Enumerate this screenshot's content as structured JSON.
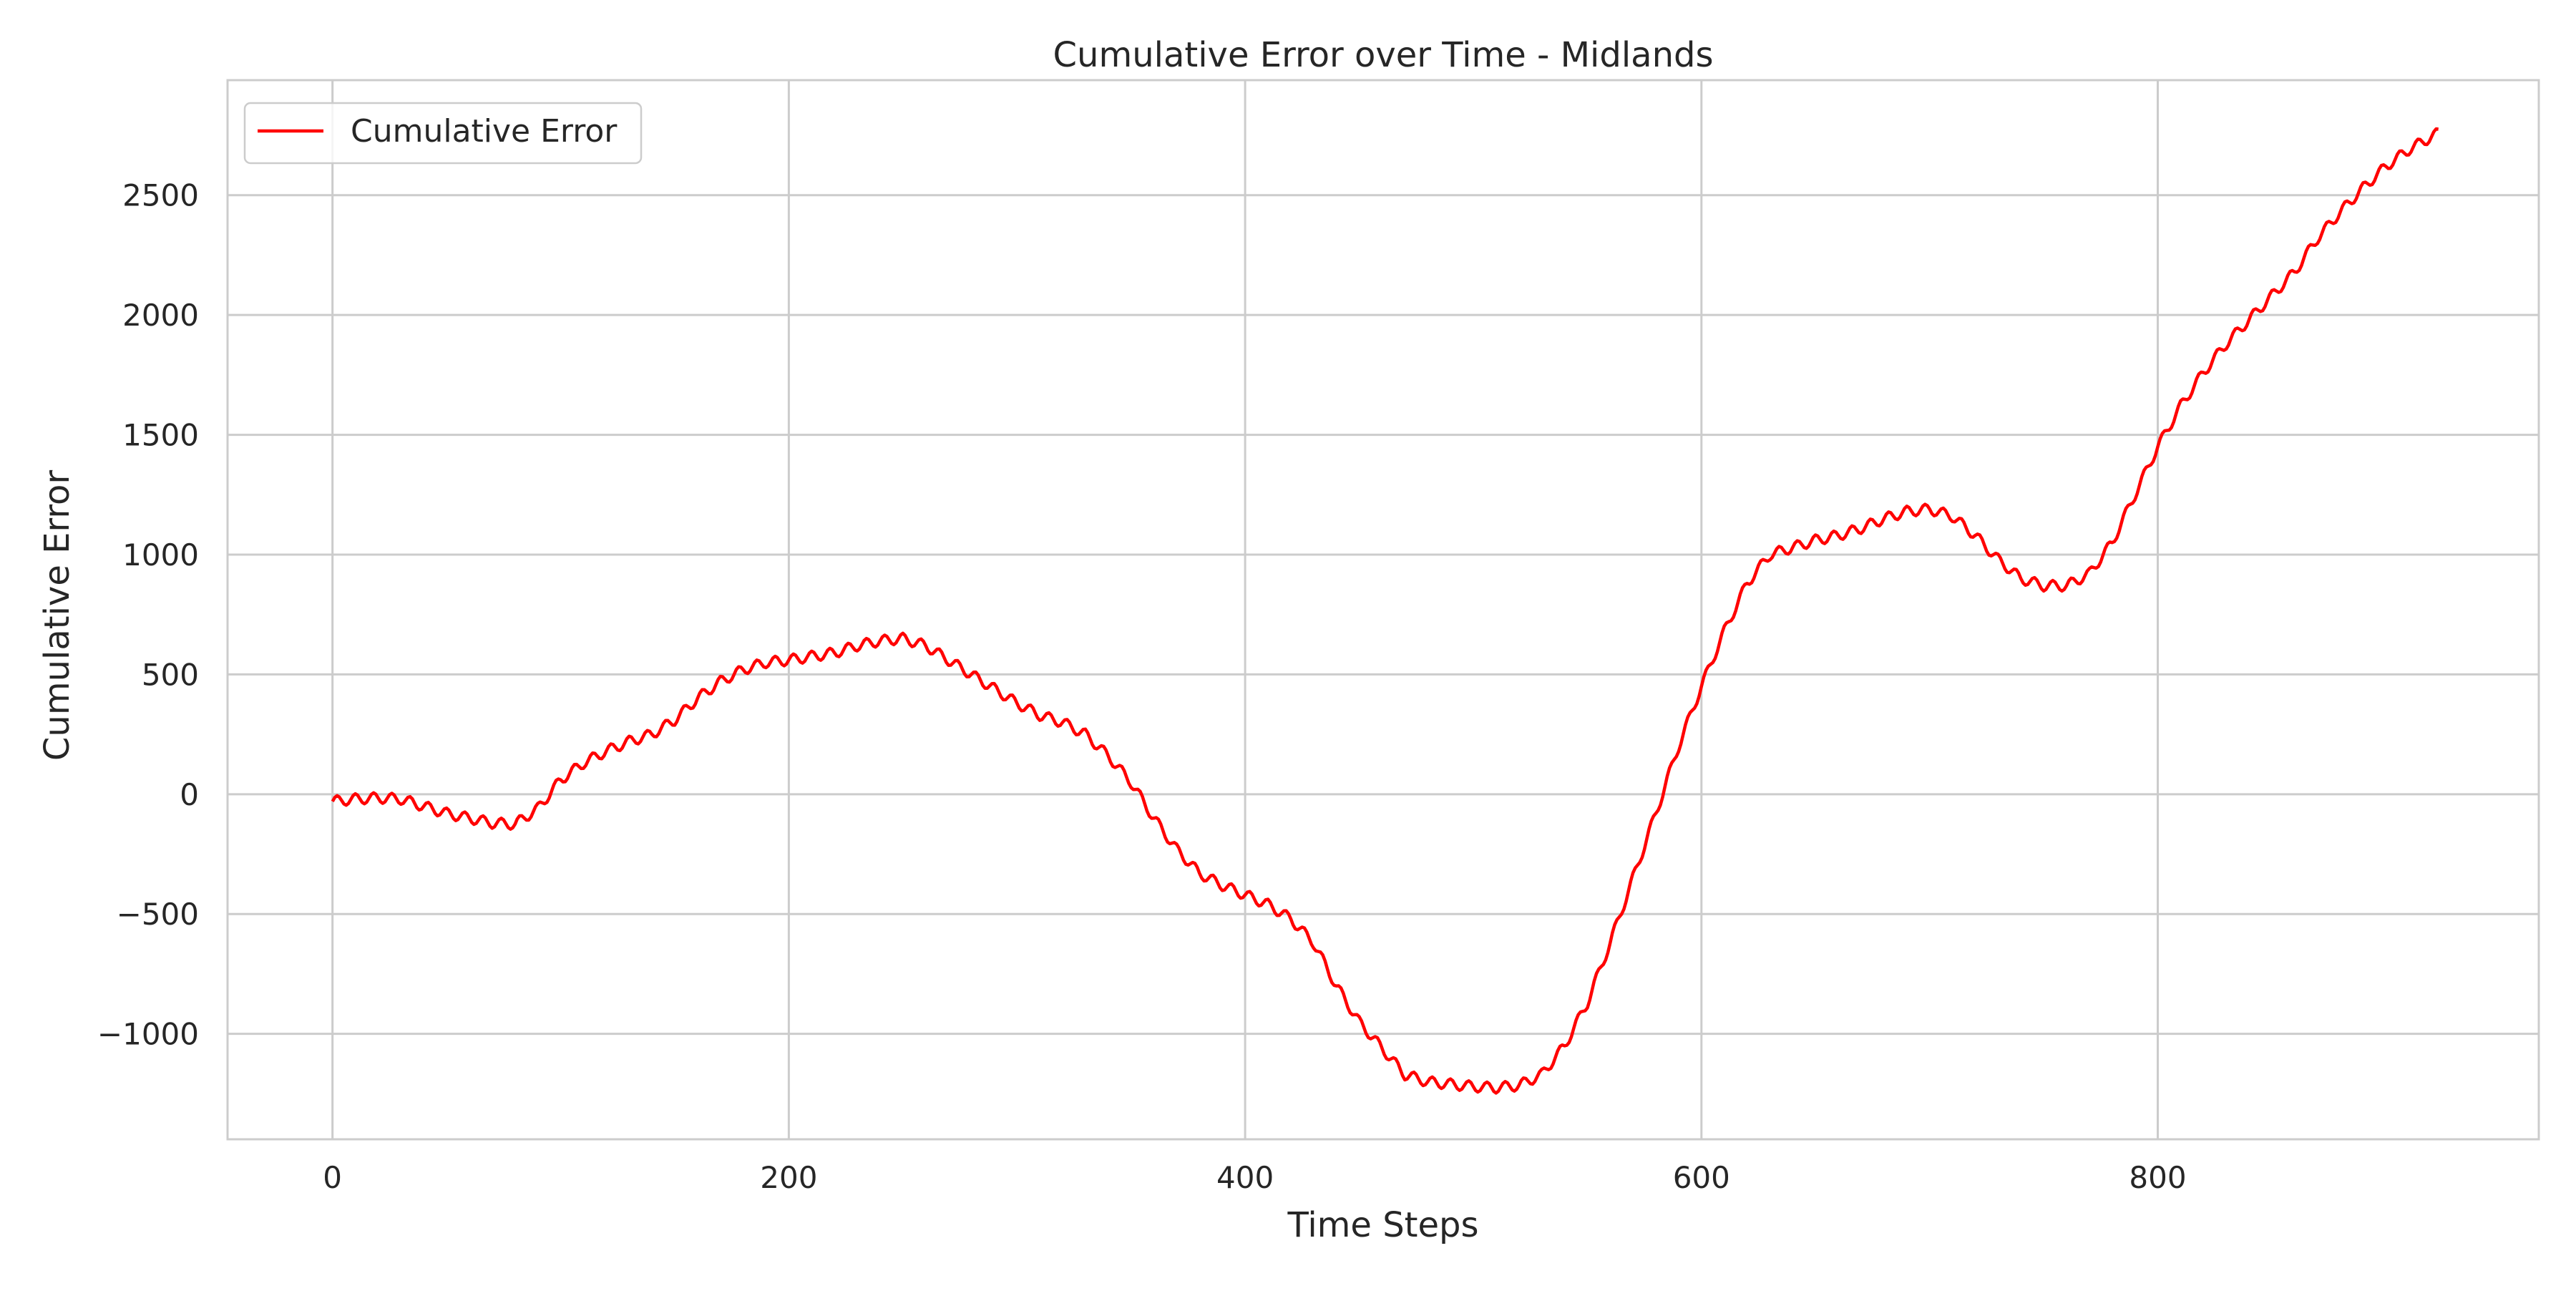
{
  "chart_data": {
    "type": "line",
    "title": "Cumulative Error over Time - Midlands",
    "xlabel": "Time Steps",
    "ylabel": "Cumulative Error",
    "xlim": [
      -46,
      967
    ],
    "ylim": [
      -1440,
      2980
    ],
    "xticks": [
      0,
      200,
      400,
      600,
      800
    ],
    "xtick_labels": [
      "0",
      "200",
      "400",
      "600",
      "800"
    ],
    "yticks": [
      -1000,
      -500,
      0,
      500,
      1000,
      1500,
      2000,
      2500
    ],
    "ytick_labels": [
      "−1000",
      "−500",
      "0",
      "500",
      "1000",
      "1500",
      "2000",
      "2500"
    ],
    "grid": true,
    "legend_position": "upper-left",
    "series": [
      {
        "name": "Cumulative Error",
        "color": "#ff0000",
        "oscillation_period": 8,
        "x": [
          0,
          10,
          20,
          30,
          40,
          50,
          60,
          70,
          80,
          90,
          100,
          110,
          120,
          130,
          140,
          150,
          160,
          170,
          180,
          190,
          200,
          210,
          220,
          230,
          240,
          250,
          260,
          270,
          280,
          290,
          300,
          310,
          320,
          330,
          340,
          350,
          360,
          370,
          380,
          390,
          400,
          410,
          420,
          430,
          440,
          450,
          460,
          470,
          480,
          490,
          500,
          510,
          520,
          530,
          540,
          550,
          560,
          570,
          580,
          590,
          600,
          610,
          620,
          630,
          640,
          650,
          660,
          670,
          680,
          690,
          700,
          710,
          720,
          730,
          740,
          750,
          760,
          770,
          780,
          790,
          800,
          810,
          820,
          830,
          840,
          850,
          860,
          870,
          880,
          890,
          900,
          910,
          923
        ],
        "y": [
          -30,
          -20,
          -15,
          -20,
          -50,
          -80,
          -100,
          -120,
          -125,
          -60,
          60,
          130,
          180,
          220,
          250,
          310,
          400,
          470,
          520,
          550,
          560,
          575,
          590,
          620,
          640,
          650,
          620,
          560,
          500,
          440,
          380,
          330,
          300,
          250,
          160,
          50,
          -100,
          -230,
          -330,
          -380,
          -420,
          -460,
          -520,
          -620,
          -800,
          -950,
          -1060,
          -1170,
          -1200,
          -1210,
          -1220,
          -1225,
          -1215,
          -1170,
          -1050,
          -870,
          -620,
          -350,
          -80,
          200,
          450,
          680,
          880,
          1000,
          1030,
          1060,
          1080,
          1110,
          1150,
          1180,
          1190,
          1160,
          1080,
          980,
          900,
          870,
          870,
          920,
          1050,
          1250,
          1450,
          1620,
          1760,
          1880,
          1980,
          2080,
          2180,
          2320,
          2430,
          2530,
          2620,
          2690,
          2760
        ],
        "y_precise_sample": null
      }
    ]
  }
}
